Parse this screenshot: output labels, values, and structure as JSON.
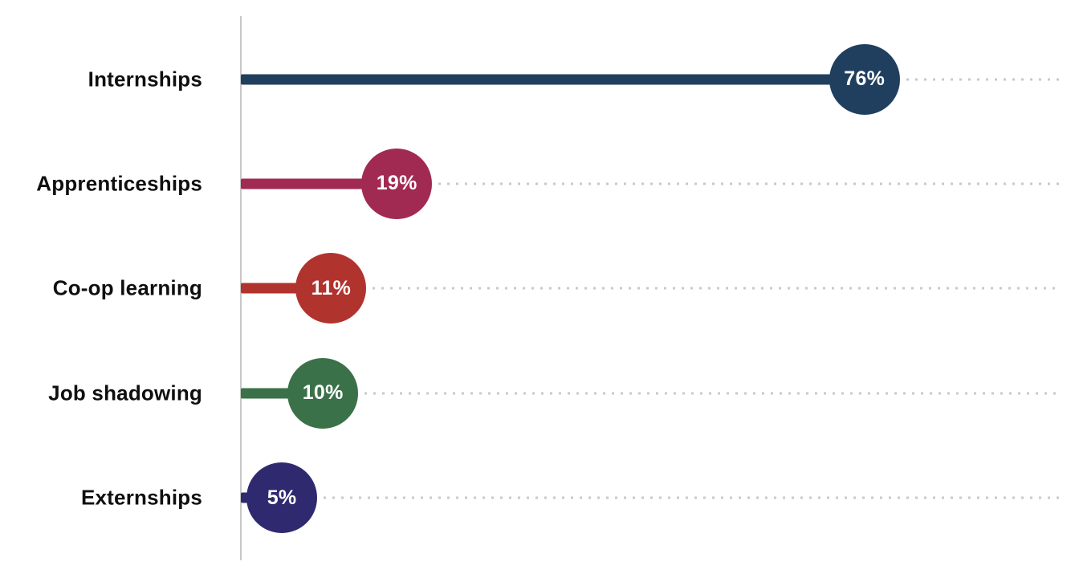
{
  "chart_data": {
    "type": "bar",
    "variant": "horizontal-lollipop",
    "title": "",
    "xlabel": "",
    "ylabel": "",
    "categories": [
      "Internships",
      "Apprenticeships",
      "Co-op learning",
      "Job shadowing",
      "Externships"
    ],
    "values": [
      76,
      19,
      11,
      10,
      5
    ],
    "labels": [
      "76%",
      "19%",
      "11%",
      "10%",
      "5%"
    ],
    "series_colors": [
      "#203f5f",
      "#a12a53",
      "#b1332e",
      "#3b7149",
      "#2f2a70"
    ],
    "value_label_color": "#ffffff",
    "xlim": [
      0,
      100
    ],
    "axis_color": "#c8c8c8",
    "dot_leader_color": "#c9c9c9",
    "background": "#ffffff",
    "grid": "dotted leader lines from bubble to 100%",
    "legend": "none"
  }
}
